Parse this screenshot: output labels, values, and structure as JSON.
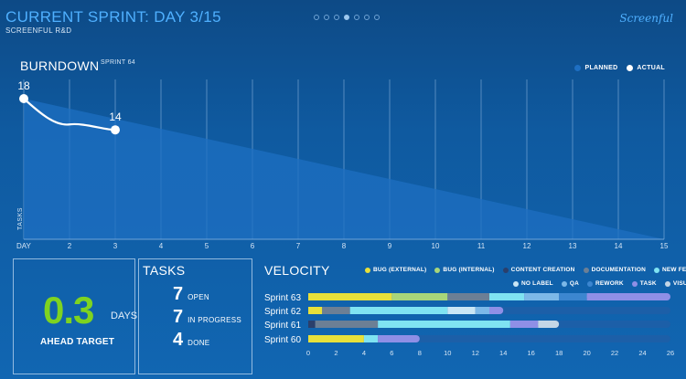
{
  "header": {
    "title": "CURRENT SPRINT: DAY 3/15",
    "subtitle": "SCREENFUL R&D",
    "brand": "Screenful",
    "pager": [
      false,
      false,
      false,
      true,
      false,
      false,
      false
    ]
  },
  "burndown": {
    "title": "BURNDOWN",
    "sprint": "SPRINT 64",
    "ylabel": "TASKS",
    "legend": [
      {
        "label": "PLANNED",
        "color": "#1e6fc2"
      },
      {
        "label": "ACTUAL",
        "color": "#ffffff"
      }
    ]
  },
  "ahead": {
    "value": "0.3",
    "unit": "DAYS",
    "label": "AHEAD TARGET"
  },
  "tasks": {
    "title": "TASKS",
    "rows": [
      {
        "num": "7",
        "label": "OPEN"
      },
      {
        "num": "7",
        "label": "IN PROGRESS"
      },
      {
        "num": "4",
        "label": "DONE"
      }
    ]
  },
  "velocity": {
    "title": "VELOCITY",
    "legend_row1": [
      {
        "label": "BUG (EXTERNAL)",
        "color": "#e8e03a"
      },
      {
        "label": "BUG (INTERNAL)",
        "color": "#a8d67a"
      },
      {
        "label": "CONTENT CREATION",
        "color": "#2b3f6b"
      },
      {
        "label": "DOCUMENTATION",
        "color": "#6c7f95"
      },
      {
        "label": "NEW FEATURE",
        "color": "#7fe3f2"
      }
    ],
    "legend_row2": [
      {
        "label": "NO LABEL",
        "color": "#c9e6f5"
      },
      {
        "label": "QA",
        "color": "#7cb8e8"
      },
      {
        "label": "REWORK",
        "color": "#3c86d0"
      },
      {
        "label": "TASK",
        "color": "#8f8fe6"
      },
      {
        "label": "VISUAL",
        "color": "#c4d6e6"
      }
    ]
  },
  "chart_data": [
    {
      "type": "line",
      "title": "BURNDOWN",
      "subtitle": "SPRINT 64",
      "ylabel": "TASKS",
      "x_tick_first": "DAY",
      "x_ticks": [
        "2",
        "3",
        "4",
        "5",
        "6",
        "7",
        "8",
        "9",
        "10",
        "11",
        "12",
        "13",
        "14",
        "15"
      ],
      "xlim": [
        1,
        15
      ],
      "ylim": [
        0,
        18
      ],
      "series": [
        {
          "name": "PLANNED",
          "type": "area",
          "x": [
            1,
            15
          ],
          "y": [
            18,
            0
          ]
        },
        {
          "name": "ACTUAL",
          "x": [
            1,
            2,
            3
          ],
          "y": [
            18,
            14.7,
            14
          ],
          "labels": [
            "18",
            "",
            "14"
          ]
        }
      ],
      "grid": true
    },
    {
      "type": "bar",
      "orientation": "horizontal",
      "stacked": true,
      "title": "VELOCITY",
      "categories": [
        "Sprint 63",
        "Sprint 62",
        "Sprint 61",
        "Sprint 60"
      ],
      "x_ticks": [
        "0",
        "2",
        "4",
        "6",
        "8",
        "10",
        "12",
        "14",
        "16",
        "18",
        "20",
        "22",
        "24",
        "26"
      ],
      "xlim": [
        0,
        26
      ],
      "segments": [
        [
          {
            "type": "BUG (EXTERNAL)",
            "value": 6
          },
          {
            "type": "BUG (INTERNAL)",
            "value": 4
          },
          {
            "type": "DOCUMENTATION",
            "value": 3
          },
          {
            "type": "NEW FEATURE",
            "value": 2.5
          },
          {
            "type": "QA",
            "value": 2.5
          },
          {
            "type": "REWORK",
            "value": 2
          },
          {
            "type": "TASK",
            "value": 6
          }
        ],
        [
          {
            "type": "BUG (EXTERNAL)",
            "value": 1
          },
          {
            "type": "DOCUMENTATION",
            "value": 2
          },
          {
            "type": "NEW FEATURE",
            "value": 7
          },
          {
            "type": "NO LABEL",
            "value": 2
          },
          {
            "type": "QA",
            "value": 1
          },
          {
            "type": "TASK",
            "value": 1
          }
        ],
        [
          {
            "type": "CONTENT CREATION",
            "value": 0.5
          },
          {
            "type": "DOCUMENTATION",
            "value": 4.5
          },
          {
            "type": "NEW FEATURE",
            "value": 9.5
          },
          {
            "type": "TASK",
            "value": 2
          },
          {
            "type": "VISUAL",
            "value": 1.5
          }
        ],
        [
          {
            "type": "BUG (EXTERNAL)",
            "value": 4
          },
          {
            "type": "NEW FEATURE",
            "value": 1
          },
          {
            "type": "TASK",
            "value": 3
          }
        ]
      ]
    }
  ]
}
